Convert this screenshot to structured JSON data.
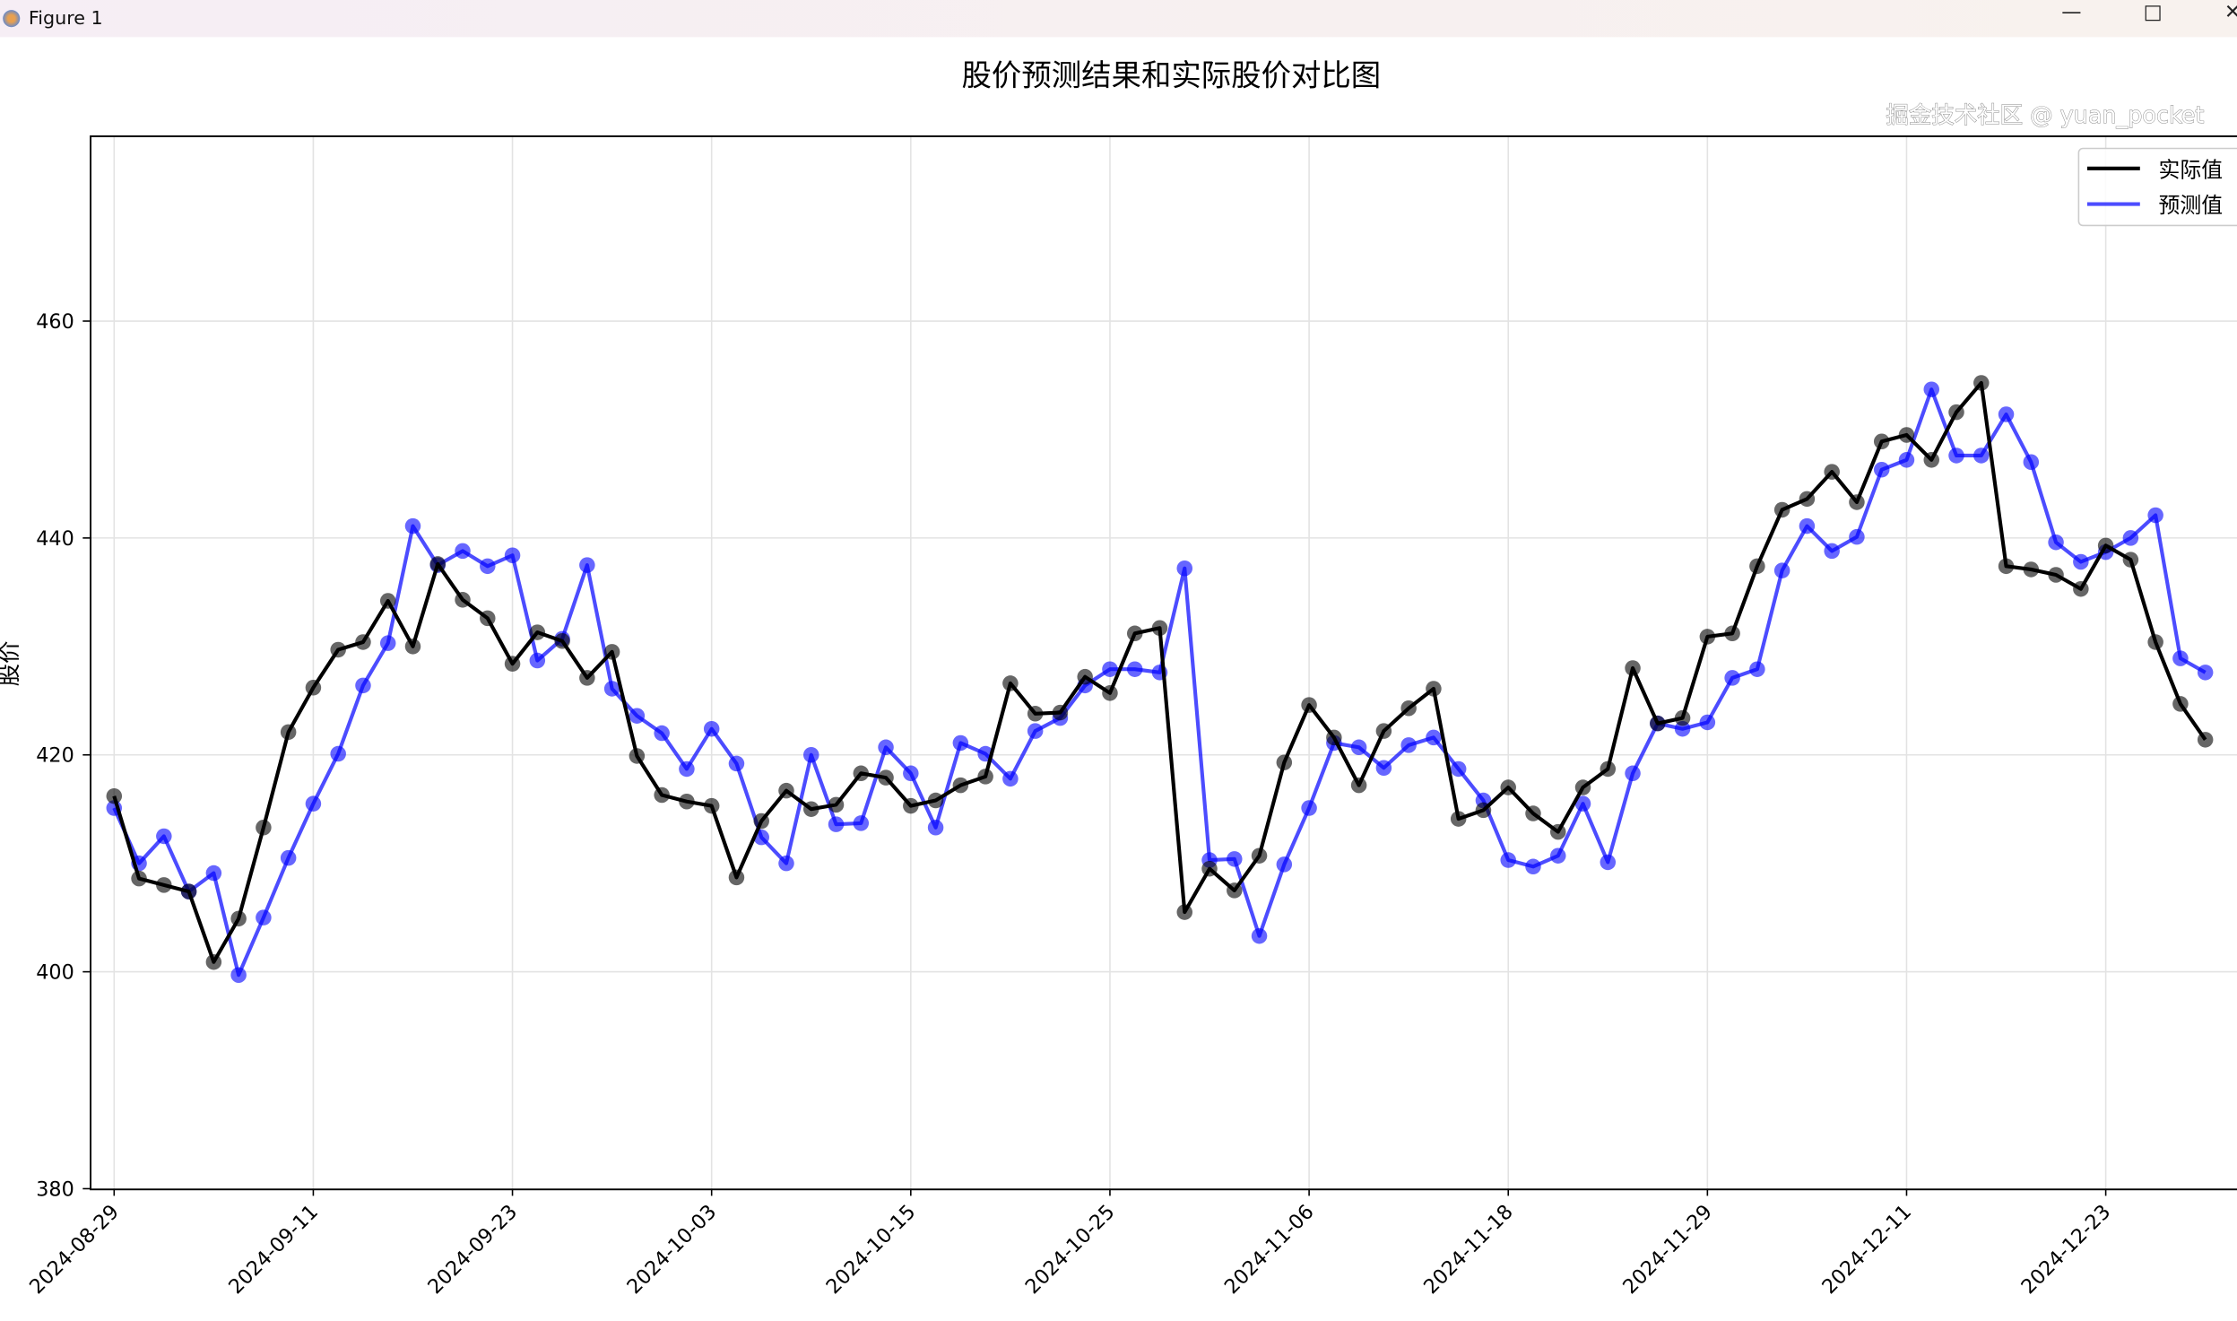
{
  "window": {
    "title": "Figure 1",
    "minimize_icon": "minimize-icon",
    "maximize_icon": "maximize-icon",
    "close_icon": "close-icon"
  },
  "watermark": "掘金技术社区 @ yuan_pocket",
  "chart_data": {
    "type": "line",
    "title": "股价预测结果和实际股价对比图",
    "ylabel": "股价",
    "xlabel": "",
    "ylim": [
      380,
      477
    ],
    "y_ticks": [
      380,
      400,
      420,
      440,
      460
    ],
    "x_tick_labels": [
      "2024-08-29",
      "2024-09-11",
      "2024-09-23",
      "2024-10-03",
      "2024-10-15",
      "2024-10-25",
      "2024-11-06",
      "2024-11-18",
      "2024-11-29",
      "2024-12-11",
      "2024-12-23"
    ],
    "x_tick_indices": [
      0,
      8,
      16,
      24,
      32,
      40,
      48,
      56,
      64,
      72,
      80
    ],
    "grid": true,
    "legend_position": "top-right",
    "series": [
      {
        "name": "实际值",
        "color": "#000000",
        "values": [
          416.2,
          408.6,
          408.0,
          407.4,
          400.9,
          404.9,
          413.3,
          422.1,
          426.2,
          429.7,
          430.4,
          434.2,
          430.0,
          437.6,
          434.3,
          432.6,
          428.4,
          431.3,
          430.5,
          427.1,
          429.5,
          419.9,
          416.3,
          415.7,
          415.3,
          408.7,
          413.9,
          416.7,
          415.0,
          415.4,
          418.3,
          417.9,
          415.3,
          415.8,
          417.2,
          418.0,
          426.6,
          423.8,
          423.9,
          427.2,
          425.7,
          431.2,
          431.7,
          405.5,
          409.5,
          407.5,
          410.7,
          419.3,
          424.6,
          421.6,
          417.2,
          422.2,
          424.3,
          426.1,
          414.1,
          414.9,
          417.0,
          414.6,
          412.9,
          417.0,
          418.7,
          428.0,
          422.9,
          423.4,
          430.9,
          431.2,
          437.4,
          442.6,
          443.6,
          446.1,
          443.3,
          448.9,
          449.5,
          447.2,
          451.6,
          454.3,
          437.4,
          437.1,
          436.6,
          435.3,
          439.3,
          438.0,
          430.4,
          424.7,
          421.4
        ]
      },
      {
        "name": "预测值",
        "color": "#0000ff",
        "values": [
          415.1,
          410.0,
          412.5,
          407.4,
          409.1,
          399.7,
          405.0,
          410.5,
          415.5,
          420.1,
          426.4,
          430.3,
          441.1,
          437.5,
          438.8,
          437.4,
          438.4,
          428.7,
          430.7,
          437.5,
          426.1,
          423.6,
          422.0,
          418.7,
          422.4,
          419.2,
          412.4,
          410.0,
          420.0,
          413.6,
          413.7,
          420.7,
          418.3,
          413.3,
          421.1,
          420.1,
          417.8,
          422.2,
          423.4,
          426.4,
          427.9,
          427.9,
          427.6,
          437.2,
          410.3,
          410.4,
          403.3,
          409.9,
          415.1,
          421.1,
          420.7,
          418.8,
          420.9,
          421.6,
          418.7,
          415.8,
          410.3,
          409.7,
          410.7,
          415.5,
          410.1,
          418.3,
          422.9,
          422.4,
          423.0,
          427.1,
          427.9,
          437.0,
          441.1,
          438.8,
          440.1,
          446.3,
          447.2,
          453.7,
          447.6,
          447.6,
          451.4,
          447.0,
          439.6,
          437.8,
          438.7,
          440.0,
          442.1,
          428.9,
          427.6
        ]
      }
    ]
  }
}
